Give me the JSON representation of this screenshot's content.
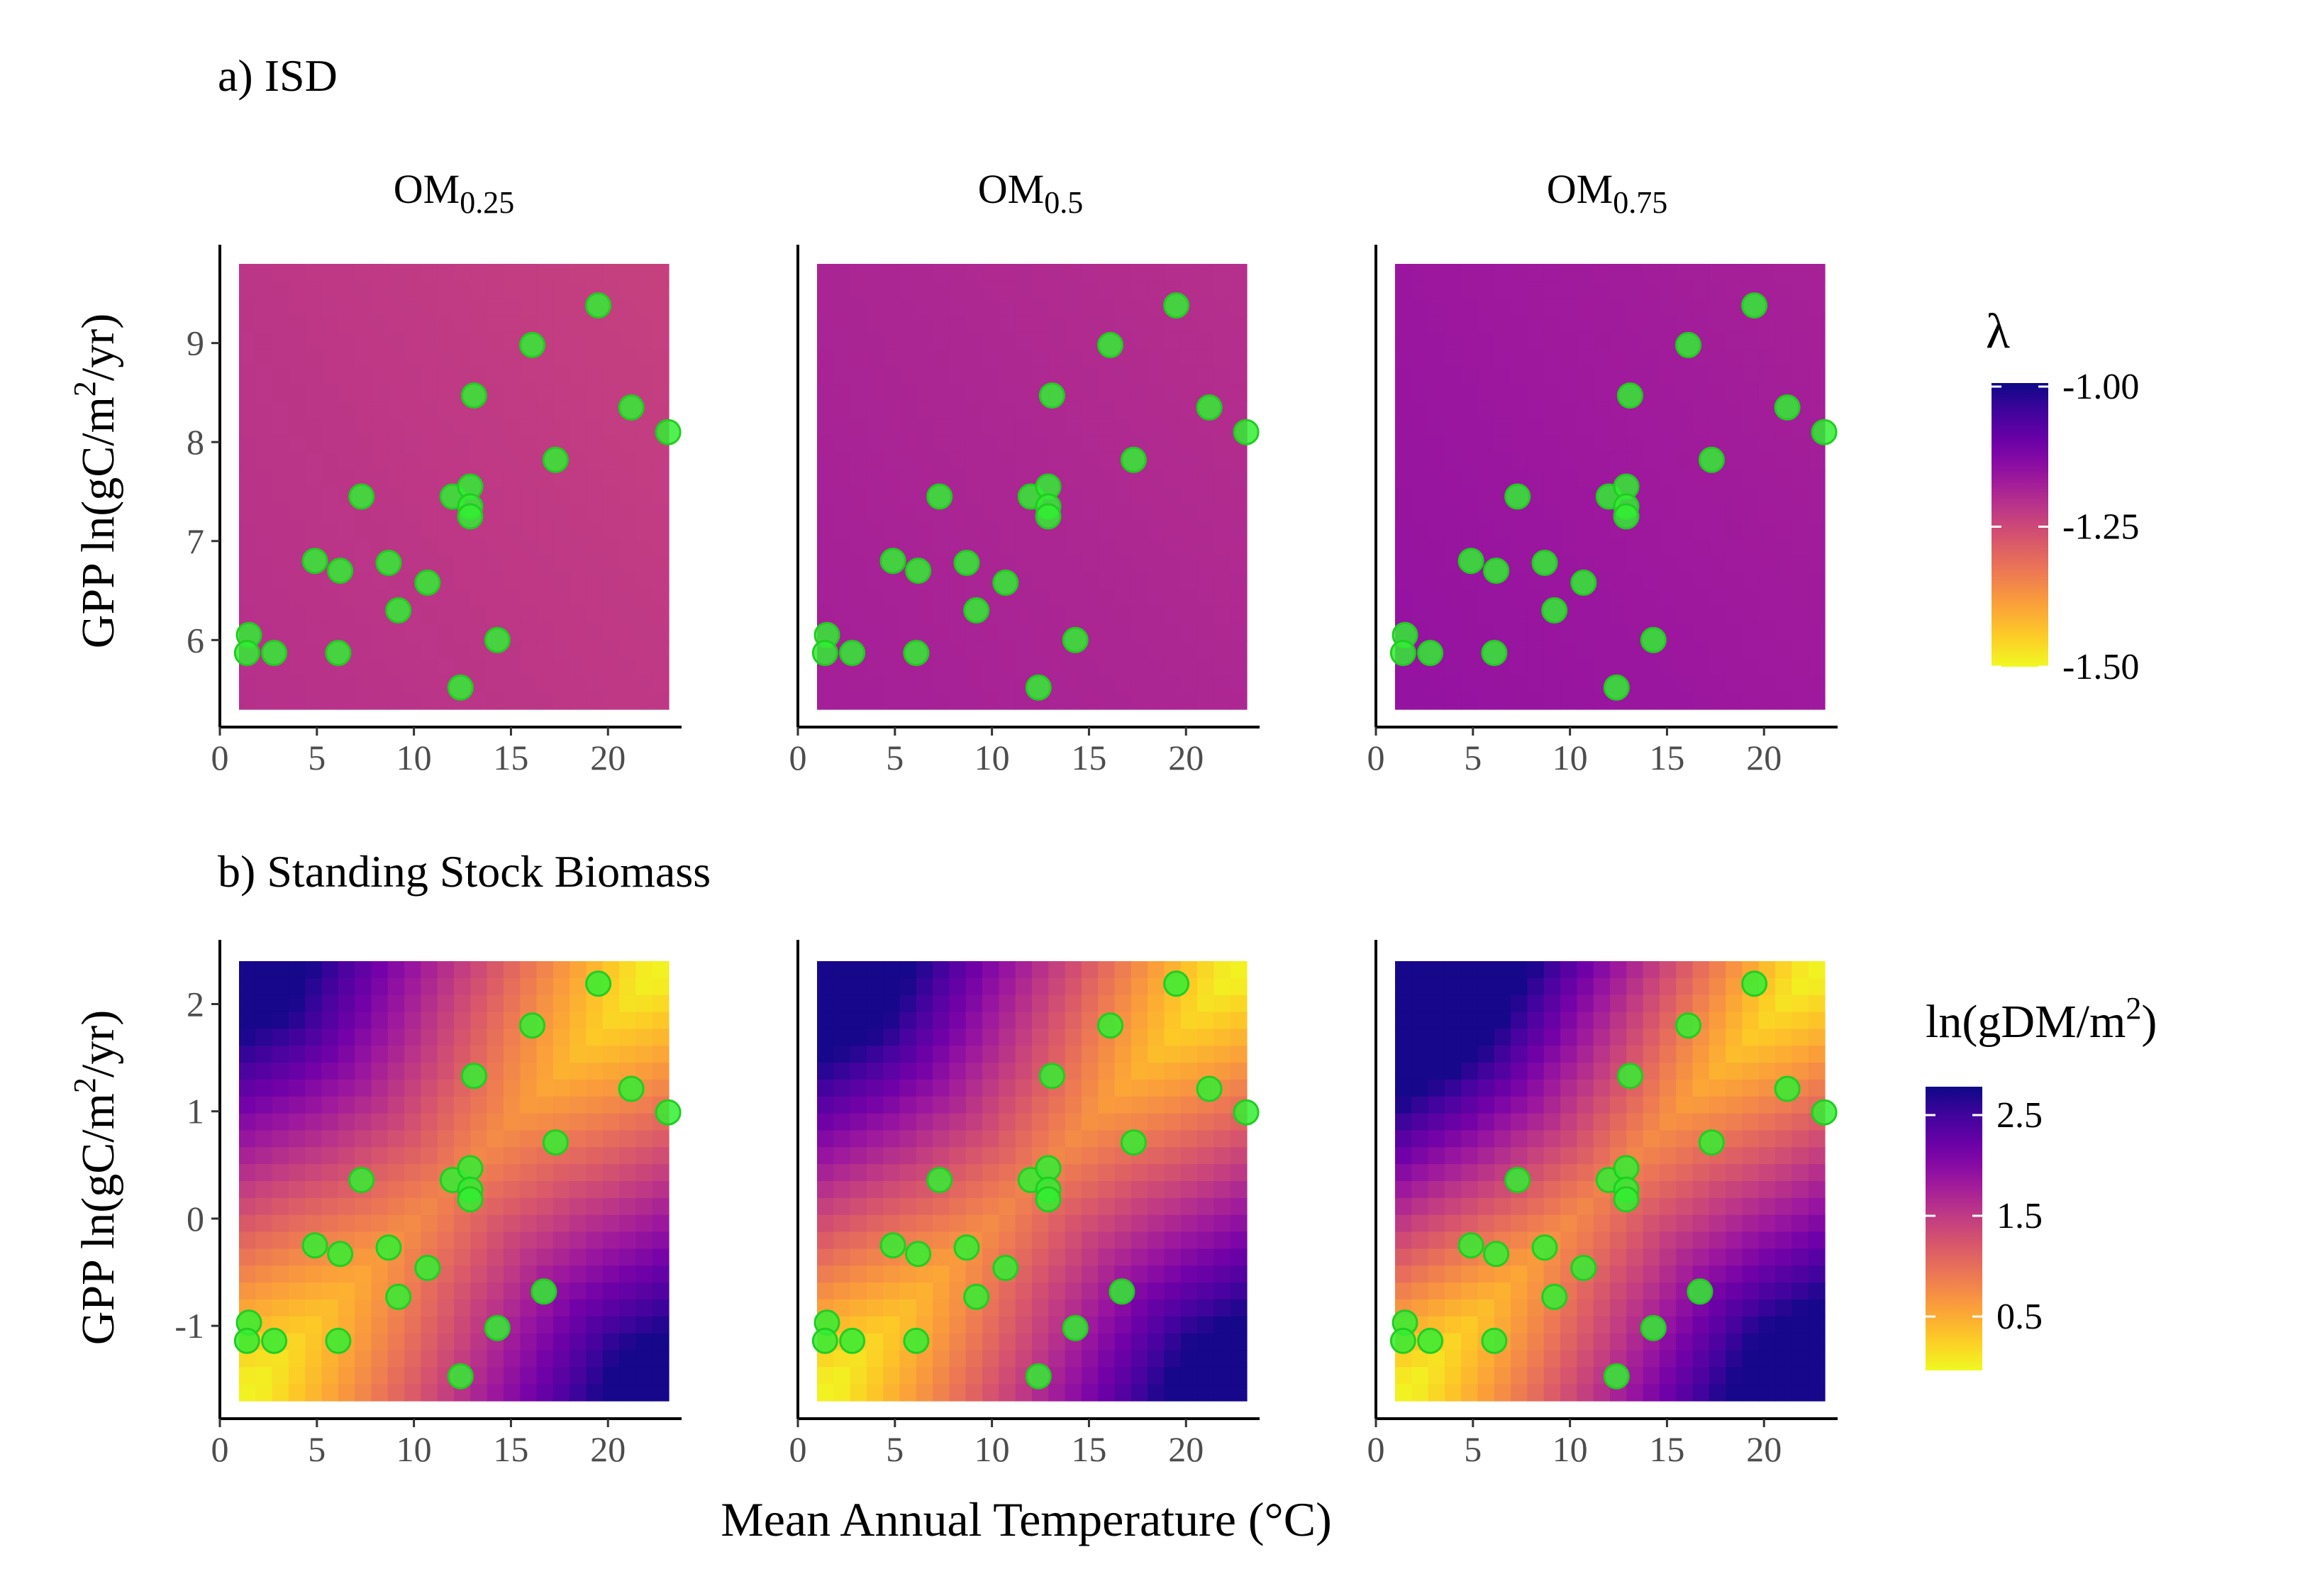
{
  "figure": {
    "panel_a_title": "a) ISD",
    "panel_b_title": "b) Standing Stock Biomass",
    "x_axis_title": "Mean Annual Temperature (°C)",
    "y_axis_title_parts": [
      "GPP ln(gC/m",
      "2",
      "/yr)"
    ],
    "facets": [
      {
        "base": "OM",
        "sub": "0.25"
      },
      {
        "base": "OM",
        "sub": "0.5"
      },
      {
        "base": "OM",
        "sub": "0.75"
      }
    ]
  },
  "legends": {
    "lambda": {
      "title": "λ",
      "ticks": [
        "-1.00",
        "-1.25",
        "-1.50"
      ],
      "range": [
        -1.5,
        -1.0
      ]
    },
    "biomass": {
      "title_parts": [
        "ln(gDM/m",
        "2",
        ")"
      ],
      "ticks": [
        "2.5",
        "1.5",
        "0.5"
      ],
      "range": [
        0.0,
        2.75
      ]
    }
  },
  "colors": {
    "point_fill": "#33ee33",
    "point_stroke": "#22cc22",
    "palette": "plasma",
    "plasma_stops": [
      "#0d0887",
      "#46039f",
      "#7201a8",
      "#9c179e",
      "#bd3786",
      "#d8576b",
      "#ed7953",
      "#fb9f3a",
      "#fdca26",
      "#f0f921"
    ]
  },
  "chart_data": [
    {
      "type": "heatmap",
      "panel": "a) ISD",
      "xlabel": "",
      "ylabel": "GPP ln(gC/m2/yr)",
      "xlim": [
        0,
        23.5
      ],
      "xticks": [
        0,
        5,
        10,
        15,
        20
      ],
      "ylim": [
        5.3,
        9.8
      ],
      "yticks": [
        6,
        7,
        8,
        9
      ],
      "fill_value_range": {
        "OM0.25": [
          -1.26,
          -1.2
        ],
        "OM0.5": [
          -1.23,
          -1.19
        ],
        "OM0.75": [
          -1.22,
          -1.17
        ]
      },
      "points": [
        [
          1.5,
          6.05
        ],
        [
          1.4,
          5.87
        ],
        [
          2.8,
          5.87
        ],
        [
          4.9,
          6.8
        ],
        [
          6.2,
          6.7
        ],
        [
          6.1,
          5.87
        ],
        [
          7.3,
          7.45
        ],
        [
          8.7,
          6.78
        ],
        [
          9.2,
          6.3
        ],
        [
          10.7,
          6.58
        ],
        [
          12.0,
          7.45
        ],
        [
          12.9,
          7.55
        ],
        [
          12.9,
          7.35
        ],
        [
          12.9,
          7.25
        ],
        [
          13.1,
          8.47
        ],
        [
          12.4,
          5.52
        ],
        [
          14.3,
          6.0
        ],
        [
          16.1,
          8.98
        ],
        [
          17.3,
          7.82
        ],
        [
          19.5,
          9.38
        ],
        [
          21.2,
          8.35
        ],
        [
          23.1,
          8.1
        ]
      ]
    },
    {
      "type": "heatmap",
      "panel": "b) Standing Stock Biomass",
      "xlabel": "Mean Annual Temperature (°C)",
      "ylabel": "GPP ln(gC/m2/yr)",
      "xlim": [
        0,
        23.5
      ],
      "xticks": [
        0,
        5,
        10,
        15,
        20
      ],
      "ylim": [
        -1.7,
        2.4
      ],
      "yticks": [
        -1,
        0,
        1,
        2
      ],
      "fill_value_range": {
        "OM0.25": [
          0.2,
          2.2
        ],
        "OM0.5": [
          0.2,
          2.25
        ],
        "OM0.75": [
          0.3,
          2.6
        ]
      },
      "points": [
        [
          1.5,
          -0.97
        ],
        [
          1.4,
          -1.14
        ],
        [
          2.8,
          -1.14
        ],
        [
          4.9,
          -0.25
        ],
        [
          6.2,
          -0.33
        ],
        [
          6.1,
          -1.14
        ],
        [
          7.3,
          0.36
        ],
        [
          8.7,
          -0.27
        ],
        [
          9.2,
          -0.73
        ],
        [
          10.7,
          -0.46
        ],
        [
          12.0,
          0.36
        ],
        [
          12.9,
          0.47
        ],
        [
          12.9,
          0.27
        ],
        [
          12.9,
          0.18
        ],
        [
          13.1,
          1.33
        ],
        [
          12.4,
          -1.47
        ],
        [
          14.3,
          -1.02
        ],
        [
          16.1,
          1.8
        ],
        [
          16.7,
          -0.68
        ],
        [
          17.3,
          0.71
        ],
        [
          19.5,
          2.19
        ],
        [
          21.2,
          1.21
        ],
        [
          23.1,
          0.99
        ]
      ]
    }
  ]
}
